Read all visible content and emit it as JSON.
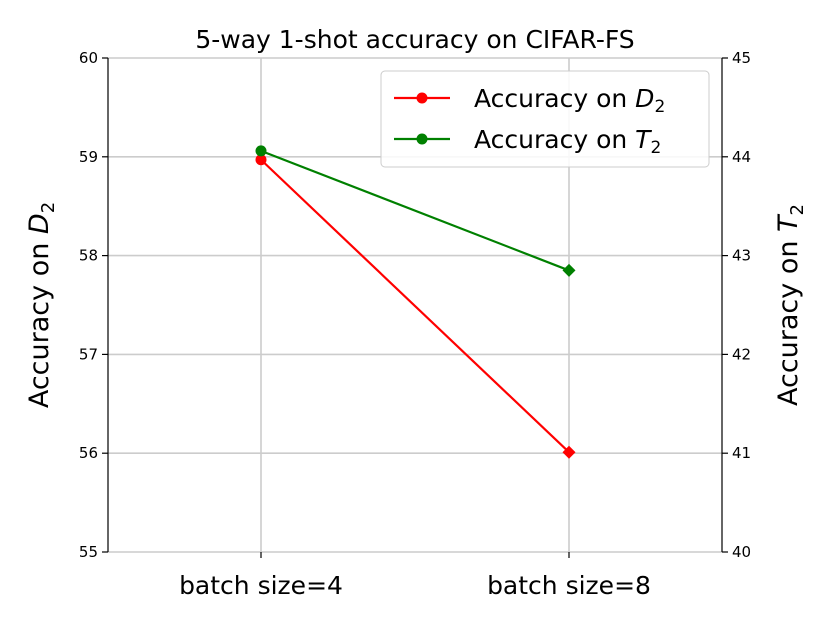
{
  "chart_data": {
    "type": "line",
    "title": "5-way 1-shot accuracy on CIFAR-FS",
    "categories": [
      "batch size=4",
      "batch size=8"
    ],
    "y_left": {
      "label_main": "Accuracy on ",
      "label_var": "D",
      "label_sub": "2",
      "ylim": [
        55,
        60
      ],
      "ticks": [
        55,
        56,
        57,
        58,
        59,
        60
      ]
    },
    "y_right": {
      "label_main": "Accuracy on ",
      "label_var": "T",
      "label_sub": "2",
      "ylim": [
        40,
        45
      ],
      "ticks": [
        40,
        41,
        42,
        43,
        44,
        45
      ]
    },
    "series": [
      {
        "name_main": "Accuracy on ",
        "name_var": "D",
        "name_sub": "2",
        "axis": "left",
        "color": "#ff0000",
        "values": [
          58.97,
          56.01
        ]
      },
      {
        "name_main": "Accuracy on ",
        "name_var": "T",
        "name_sub": "2",
        "axis": "right",
        "color": "#008000",
        "values": [
          44.06,
          42.85
        ]
      }
    ],
    "grid": true,
    "legend_position": "top-right"
  }
}
